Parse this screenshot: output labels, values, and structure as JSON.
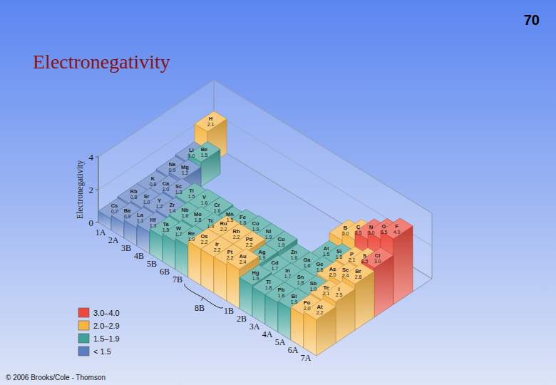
{
  "page": {
    "number": "70",
    "copyright": "© 2006 Brooks/Cole - Thomson"
  },
  "chart_data": {
    "type": "bar3d",
    "title": "Electronegativity",
    "ylabel": "Electronegativity",
    "ylim": [
      0,
      4
    ],
    "yticks": [
      0,
      2,
      4
    ],
    "grid": true,
    "data_labels": true,
    "categories": [
      "1A",
      "2A",
      "3B",
      "4B",
      "5B",
      "6B",
      "7B",
      null,
      "8B",
      null,
      "1B",
      "2B",
      "3A",
      "4A",
      "5A",
      "6A",
      "7A"
    ],
    "legend_bins": [
      {
        "label": "3.0–4.0",
        "color": "#ec4a3c",
        "min": 3.0,
        "max": 4.0
      },
      {
        "label": "2.0–2.9",
        "color": "#f6b441",
        "min": 2.0,
        "max": 2.9
      },
      {
        "label": "1.5–1.9",
        "color": "#3fa29a",
        "min": 1.5,
        "max": 1.9
      },
      {
        "label": "< 1.5",
        "color": "#5a7ec2",
        "min": null,
        "max": 1.5
      }
    ],
    "cells": [
      [
        {
          "symbol": "H",
          "value": 2.1
        },
        null,
        null,
        null,
        null,
        null,
        null,
        null,
        null,
        null,
        null,
        null,
        null,
        null,
        null,
        null,
        null
      ],
      [
        {
          "symbol": "Li",
          "value": 1.0,
          "value_label": "1.0"
        },
        {
          "symbol": "Be",
          "value": 1.5
        },
        null,
        null,
        null,
        null,
        null,
        null,
        null,
        null,
        null,
        null,
        {
          "symbol": "B",
          "value": 2.0,
          "value_label": "2.0"
        },
        {
          "symbol": "C",
          "value": 2.5
        },
        {
          "symbol": "N",
          "value": 3.0,
          "value_label": "3.0"
        },
        {
          "symbol": "O",
          "value": 3.5
        },
        {
          "symbol": "F",
          "value": 4.0,
          "value_label": "4.0"
        }
      ],
      [
        {
          "symbol": "Na",
          "value": 0.9
        },
        {
          "symbol": "Mg",
          "value": 1.2
        },
        null,
        null,
        null,
        null,
        null,
        null,
        null,
        null,
        null,
        null,
        {
          "symbol": "Al",
          "value": 1.5
        },
        {
          "symbol": "Si",
          "value": 1.8
        },
        {
          "symbol": "P",
          "value": 2.1
        },
        {
          "symbol": "S",
          "value": 2.5
        },
        {
          "symbol": "Cl",
          "value": 3.0,
          "value_label": "3.0"
        }
      ],
      [
        {
          "symbol": "K",
          "value": 0.8
        },
        {
          "symbol": "Ca",
          "value": 1.0,
          "value_label": "1.0"
        },
        {
          "symbol": "Sc",
          "value": 1.3
        },
        {
          "symbol": "Ti",
          "value": 1.5
        },
        {
          "symbol": "V",
          "value": 1.6
        },
        {
          "symbol": "Cr",
          "value": 1.6
        },
        {
          "symbol": "Mn",
          "value": 1.5
        },
        {
          "symbol": "Fe",
          "value": 1.8
        },
        {
          "symbol": "Co",
          "value": 1.9
        },
        {
          "symbol": "Ni",
          "value": 1.9
        },
        {
          "symbol": "Cu",
          "value": 1.9
        },
        {
          "symbol": "Zn",
          "value": 1.6
        },
        {
          "symbol": "Ga",
          "value": 1.6
        },
        {
          "symbol": "Ge",
          "value": 1.8
        },
        {
          "symbol": "As",
          "value": 2.0,
          "value_label": "2.0"
        },
        {
          "symbol": "Se",
          "value": 2.4
        },
        {
          "symbol": "Br",
          "value": 2.8
        }
      ],
      [
        {
          "symbol": "Rb",
          "value": 0.8
        },
        {
          "symbol": "Sr",
          "value": 1.0,
          "value_label": "1.0"
        },
        {
          "symbol": "Y",
          "value": 1.2
        },
        {
          "symbol": "Zr",
          "value": 1.4
        },
        {
          "symbol": "Nb",
          "value": 1.6
        },
        {
          "symbol": "Mo",
          "value": 1.8
        },
        {
          "symbol": "Tc",
          "value": 1.9
        },
        {
          "symbol": "Ru",
          "value": 2.2
        },
        {
          "symbol": "Rh",
          "value": 2.2
        },
        {
          "symbol": "Pd",
          "value": 2.2
        },
        {
          "symbol": "Ag",
          "value": 1.9
        },
        {
          "symbol": "Cd",
          "value": 1.7
        },
        {
          "symbol": "In",
          "value": 1.7
        },
        {
          "symbol": "Sn",
          "value": 1.8
        },
        {
          "symbol": "Sb",
          "value": 1.9
        },
        {
          "symbol": "Te",
          "value": 2.1
        },
        {
          "symbol": "I",
          "value": 2.5
        }
      ],
      [
        {
          "symbol": "Cs",
          "value": 0.7
        },
        {
          "symbol": "Ba",
          "value": 0.9
        },
        {
          "symbol": "La",
          "value": 1.1
        },
        {
          "symbol": "Hf",
          "value": 1.3
        },
        {
          "symbol": "Ta",
          "value": 1.5
        },
        {
          "symbol": "W",
          "value": 1.7
        },
        {
          "symbol": "Re",
          "value": 1.9
        },
        {
          "symbol": "Os",
          "value": 2.2
        },
        {
          "symbol": "Ir",
          "value": 2.2
        },
        {
          "symbol": "Pt",
          "value": 2.2
        },
        {
          "symbol": "Au",
          "value": 2.4
        },
        {
          "symbol": "Hg",
          "value": 1.9
        },
        {
          "symbol": "Tl",
          "value": 1.8
        },
        {
          "symbol": "Pb",
          "value": 1.8
        },
        {
          "symbol": "Bi",
          "value": 1.9
        },
        {
          "symbol": "Po",
          "value": 2.0,
          "value_label": "2.0"
        },
        {
          "symbol": "At",
          "value": 2.2
        }
      ]
    ]
  }
}
